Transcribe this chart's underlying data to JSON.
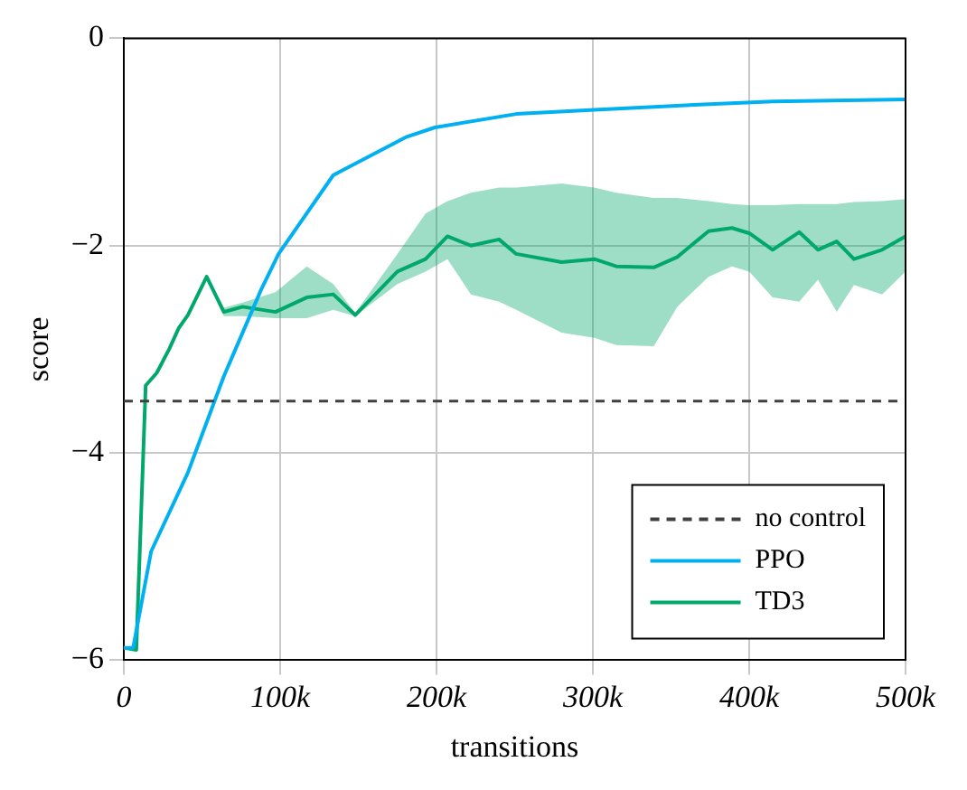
{
  "chart_data": {
    "type": "line",
    "xlabel": "transitions",
    "ylabel": "score",
    "xlim": [
      0,
      500000
    ],
    "ylim": [
      -6,
      0
    ],
    "xticks": [
      0,
      {
        "value": 100000,
        "label": "100k"
      },
      {
        "value": 200000,
        "label": "200k"
      },
      {
        "value": 300000,
        "label": "300k"
      },
      {
        "value": 400000,
        "label": "400k"
      },
      {
        "value": 500000,
        "label": "500k"
      }
    ],
    "yticks": [
      {
        "value": -6,
        "label": "−6"
      },
      {
        "value": -4,
        "label": "−4"
      },
      {
        "value": -2,
        "label": "−2"
      },
      0
    ],
    "grid": true,
    "legend": "bottom right",
    "marker": "none",
    "line_style": "solid",
    "ref_lines": [
      {
        "axis": "y",
        "value": -3.5,
        "label": "no control",
        "color": "#404040",
        "line_style": "dashed"
      }
    ],
    "series": [
      {
        "name": "PPO",
        "color": "#00b0f0",
        "x": [
          0,
          6000,
          17500,
          41000,
          64000,
          88000,
          99000,
          134000,
          181000,
          199000,
          251000,
          301000,
          368000,
          415000,
          500000
        ],
        "values": [
          -5.88,
          -5.88,
          -4.95,
          -4.19,
          -3.26,
          -2.42,
          -2.08,
          -1.32,
          -0.95,
          -0.86,
          -0.73,
          -0.69,
          -0.64,
          -0.61,
          -0.59
        ]
      },
      {
        "name": "TD3",
        "color": "#00a86b",
        "x": [
          0,
          8000,
          14000,
          21000,
          29000,
          35000,
          41000,
          53000,
          64000,
          76000,
          97000,
          117000,
          134000,
          148000,
          175000,
          193000,
          207000,
          222000,
          240000,
          251000,
          280000,
          301000,
          315000,
          339000,
          354000,
          374000,
          389000,
          400000,
          415000,
          432000,
          444000,
          456000,
          467000,
          485000,
          500000
        ],
        "values": [
          -5.88,
          -5.9,
          -3.35,
          -3.23,
          -3.0,
          -2.8,
          -2.67,
          -2.3,
          -2.64,
          -2.59,
          -2.64,
          -2.5,
          -2.47,
          -2.67,
          -2.25,
          -2.13,
          -1.91,
          -2.0,
          -1.94,
          -2.08,
          -2.16,
          -2.13,
          -2.2,
          -2.21,
          -2.11,
          -1.86,
          -1.83,
          -1.88,
          -2.04,
          -1.87,
          -2.04,
          -1.96,
          -2.13,
          -2.04,
          -1.91
        ],
        "upper": [
          -5.88,
          -5.9,
          -3.35,
          -3.23,
          -3.0,
          -2.8,
          -2.67,
          -2.3,
          -2.6,
          -2.55,
          -2.45,
          -2.2,
          -2.37,
          -2.65,
          -2.08,
          -1.69,
          -1.57,
          -1.49,
          -1.44,
          -1.44,
          -1.4,
          -1.44,
          -1.49,
          -1.54,
          -1.54,
          -1.57,
          -1.6,
          -1.61,
          -1.61,
          -1.6,
          -1.6,
          -1.6,
          -1.58,
          -1.57,
          -1.55
        ],
        "lower": [
          -5.88,
          -5.9,
          -3.35,
          -3.23,
          -3.0,
          -2.8,
          -2.67,
          -2.3,
          -2.68,
          -2.68,
          -2.7,
          -2.7,
          -2.62,
          -2.68,
          -2.37,
          -2.25,
          -2.13,
          -2.47,
          -2.54,
          -2.62,
          -2.84,
          -2.89,
          -2.96,
          -2.97,
          -2.59,
          -2.3,
          -2.2,
          -2.25,
          -2.5,
          -2.54,
          -2.33,
          -2.64,
          -2.38,
          -2.47,
          -2.25
        ]
      }
    ]
  }
}
